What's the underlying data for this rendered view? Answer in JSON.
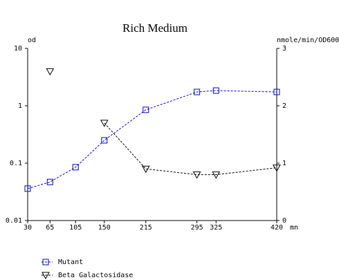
{
  "chart_data": {
    "type": "line",
    "title": "Rich Medium",
    "x_label": "mn",
    "y_label": "od",
    "y2_label": "nmole/min/OD600",
    "x": [
      30,
      65,
      105,
      150,
      215,
      295,
      325,
      420
    ],
    "xlim": [
      30,
      420
    ],
    "xticks": [
      30,
      65,
      105,
      150,
      215,
      295,
      325,
      420
    ],
    "ylim": [
      0.01,
      10
    ],
    "yticks": [
      0.01,
      0.1,
      1,
      10
    ],
    "y_scale": "log",
    "y2lim": [
      0,
      3
    ],
    "y2ticks": [
      0,
      1,
      2,
      3
    ],
    "series": [
      {
        "name": "Mutant",
        "color": "#0000cc",
        "marker": "square",
        "axis": "y",
        "values": [
          0.036,
          0.047,
          0.085,
          0.25,
          0.85,
          1.74,
          1.84,
          1.74
        ]
      },
      {
        "name": "Beta Galactosidase",
        "color": "#000000",
        "marker": "triangle-down",
        "axis": "y2",
        "values": [
          null,
          2.6,
          null,
          1.7,
          0.9,
          0.8,
          0.8,
          0.92
        ]
      }
    ]
  }
}
